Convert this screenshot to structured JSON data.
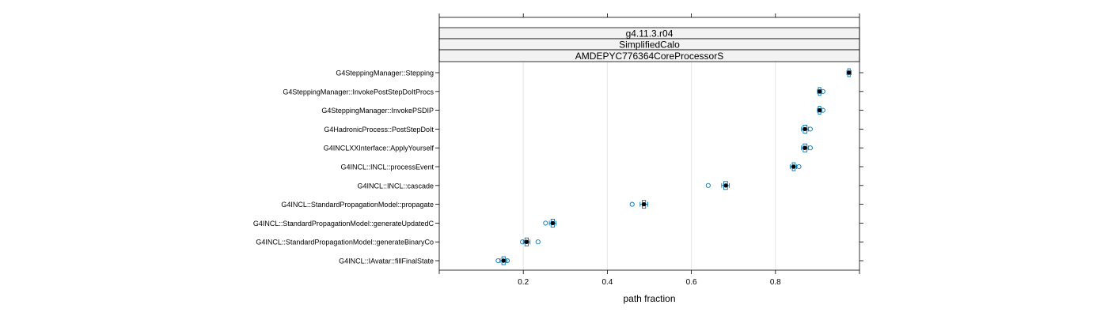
{
  "chart_data": {
    "type": "box",
    "panel_strips": [
      "g4.11.3.r04",
      "SimplifiedCalo",
      "AMDEPYC776364CoreProcessorS"
    ],
    "xlabel": "path fraction",
    "xlim": [
      0.0,
      1.0
    ],
    "x_ticks": [
      0.2,
      0.4,
      0.6,
      0.8
    ],
    "grid": "vertical",
    "colors": {
      "box": "#0072b2",
      "median": "#000000",
      "grid": "#e6e6e6",
      "strip_bg": "#f2f2f2"
    },
    "categories": [
      "G4SteppingManager::Stepping",
      "G4SteppingManager::InvokePostStepDoItProcs",
      "G4SteppingManager::InvokePSDIP",
      "G4HadronicProcess::PostStepDoIt",
      "G4INCLXXInterface::ApplyYourself",
      "G4INCL::INCL::processEvent",
      "G4INCL::INCL::cascade",
      "G4INCL::StandardPropagationModel::propagate",
      "G4INCL::StandardPropagationModel::generateUpdatedC",
      "G4INCL::StandardPropagationModel::generateBinaryCo",
      "G4INCL::IAvatar::fillFinalState"
    ],
    "stats": [
      {
        "q1": 0.972,
        "median": 0.975,
        "q3": 0.978,
        "wlo": 0.97,
        "whi": 0.98,
        "outliers": []
      },
      {
        "q1": 0.902,
        "median": 0.905,
        "q3": 0.908,
        "wlo": 0.9,
        "whi": 0.91,
        "outliers": [
          0.913
        ]
      },
      {
        "q1": 0.902,
        "median": 0.905,
        "q3": 0.908,
        "wlo": 0.9,
        "whi": 0.91,
        "outliers": [
          0.913
        ]
      },
      {
        "q1": 0.866,
        "median": 0.87,
        "q3": 0.875,
        "wlo": 0.862,
        "whi": 0.878,
        "outliers": [
          0.883
        ]
      },
      {
        "q1": 0.866,
        "median": 0.87,
        "q3": 0.875,
        "wlo": 0.862,
        "whi": 0.878,
        "outliers": [
          0.883
        ]
      },
      {
        "q1": 0.84,
        "median": 0.843,
        "q3": 0.847,
        "wlo": 0.835,
        "whi": 0.85,
        "outliers": [
          0.856
        ]
      },
      {
        "q1": 0.677,
        "median": 0.682,
        "q3": 0.686,
        "wlo": 0.672,
        "whi": 0.69,
        "outliers": [
          0.64
        ]
      },
      {
        "q1": 0.483,
        "median": 0.487,
        "q3": 0.491,
        "wlo": 0.478,
        "whi": 0.496,
        "outliers": [
          0.459
        ]
      },
      {
        "q1": 0.266,
        "median": 0.27,
        "q3": 0.274,
        "wlo": 0.262,
        "whi": 0.278,
        "outliers": [
          0.253
        ]
      },
      {
        "q1": 0.204,
        "median": 0.208,
        "q3": 0.212,
        "wlo": 0.2,
        "whi": 0.216,
        "outliers": [
          0.198,
          0.235
        ]
      },
      {
        "q1": 0.149,
        "median": 0.153,
        "q3": 0.157,
        "wlo": 0.145,
        "whi": 0.161,
        "outliers": [
          0.14,
          0.162
        ]
      }
    ]
  }
}
